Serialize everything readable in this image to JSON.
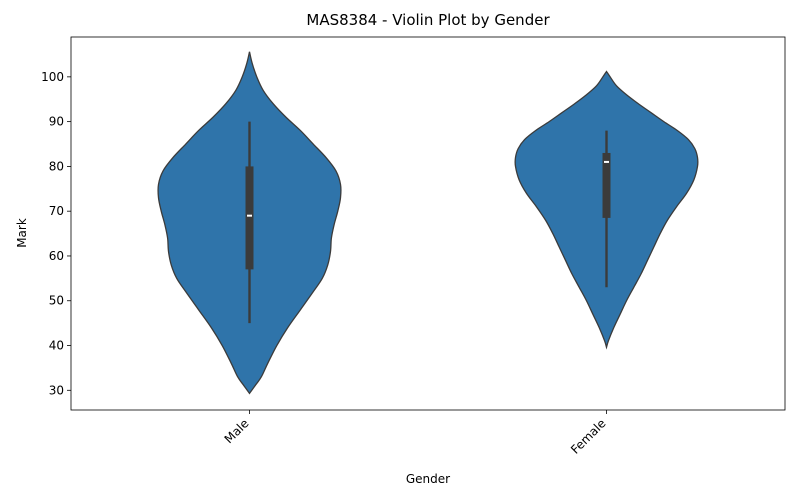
{
  "chart_data": {
    "type": "violin",
    "title": "MAS8384 - Violin Plot by Gender",
    "xlabel": "Gender",
    "ylabel": "Mark",
    "categories": [
      "Male",
      "Female"
    ],
    "ylim": [
      25.6,
      108.9
    ],
    "yticks": [
      30,
      40,
      50,
      60,
      70,
      80,
      90,
      100
    ],
    "grid": false,
    "legend": "none",
    "fill_color": "#2f74aa",
    "edge_color": "#3b3b3b",
    "violins": [
      {
        "category": "Male",
        "min": 45,
        "q1": 57,
        "median": 69,
        "q3": 80,
        "max": 90,
        "kde_range": [
          29.3,
          105.6
        ],
        "density": [
          [
            29.3,
            0.0
          ],
          [
            31,
            0.06
          ],
          [
            33,
            0.13
          ],
          [
            36,
            0.2
          ],
          [
            40,
            0.3
          ],
          [
            44,
            0.42
          ],
          [
            48,
            0.56
          ],
          [
            52,
            0.7
          ],
          [
            55,
            0.8
          ],
          [
            58,
            0.86
          ],
          [
            61,
            0.89
          ],
          [
            64,
            0.9
          ],
          [
            67,
            0.93
          ],
          [
            70,
            0.97
          ],
          [
            73,
            1.0
          ],
          [
            76,
            1.0
          ],
          [
            79,
            0.95
          ],
          [
            82,
            0.84
          ],
          [
            85,
            0.7
          ],
          [
            88,
            0.56
          ],
          [
            91,
            0.4
          ],
          [
            94,
            0.26
          ],
          [
            97,
            0.15
          ],
          [
            100,
            0.08
          ],
          [
            103,
            0.03
          ],
          [
            105.6,
            0.0
          ]
        ]
      },
      {
        "category": "Female",
        "min": 53,
        "q1": 68.5,
        "median": 81,
        "q3": 83,
        "max": 88,
        "kde_range": [
          39.6,
          101.2
        ],
        "density": [
          [
            39.6,
            0.0
          ],
          [
            41,
            0.02
          ],
          [
            44,
            0.08
          ],
          [
            47,
            0.15
          ],
          [
            50,
            0.22
          ],
          [
            53,
            0.3
          ],
          [
            56,
            0.38
          ],
          [
            59,
            0.45
          ],
          [
            62,
            0.52
          ],
          [
            65,
            0.59
          ],
          [
            68,
            0.67
          ],
          [
            71,
            0.77
          ],
          [
            74,
            0.88
          ],
          [
            77,
            0.96
          ],
          [
            80,
            1.0
          ],
          [
            82,
            1.0
          ],
          [
            84,
            0.97
          ],
          [
            86,
            0.9
          ],
          [
            88,
            0.78
          ],
          [
            90,
            0.63
          ],
          [
            92,
            0.49
          ],
          [
            94,
            0.35
          ],
          [
            96,
            0.22
          ],
          [
            98,
            0.11
          ],
          [
            100,
            0.04
          ],
          [
            101.2,
            0.0
          ]
        ]
      }
    ]
  }
}
